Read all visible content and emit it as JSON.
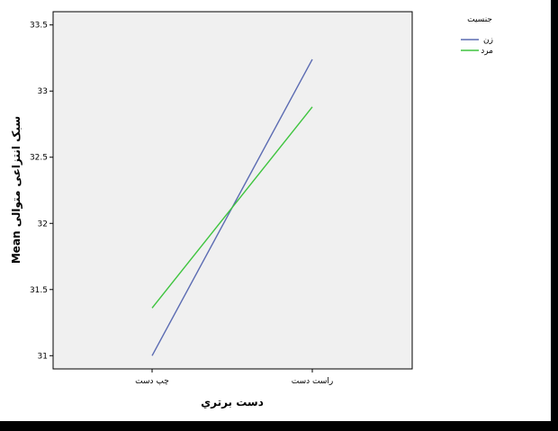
{
  "chart_data": {
    "type": "line",
    "categories": [
      "چپ دست",
      "راست دست"
    ],
    "series": [
      {
        "name": "زن",
        "values": [
          31.0,
          33.24
        ],
        "color": "#5b6bb2"
      },
      {
        "name": "مرد",
        "values": [
          31.36,
          32.88
        ],
        "color": "#3ec43e"
      }
    ],
    "xlabel": "دست برتري",
    "ylabel": "Mean سبک انتزاعی متوالی",
    "yticks": [
      31,
      31.5,
      32,
      32.5,
      33,
      33.5
    ],
    "ytick_labels": [
      "31",
      "31.5",
      "32",
      "32.5",
      "33",
      "33.5"
    ],
    "ylim": [
      30.9,
      33.6
    ],
    "legend_title": "جنسیت",
    "legend_position": "top-right",
    "background": "#f0f0f0",
    "grid": false
  }
}
